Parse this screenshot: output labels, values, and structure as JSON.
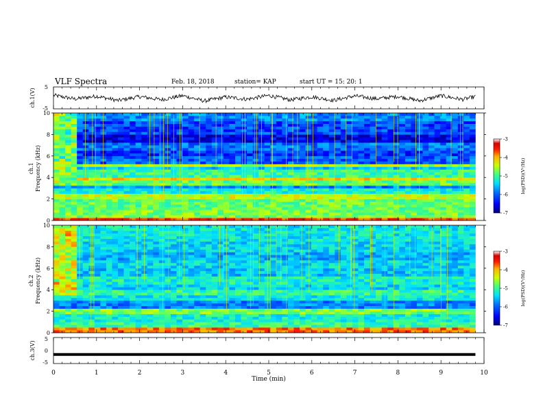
{
  "header": {
    "title": "VLF Spectra",
    "date": "Feb. 18, 2018",
    "station": "station= KAP",
    "start": "start  UT  =   15: 20: 1"
  },
  "colorbar": {
    "label": "log(PSD)(V²/Hz)",
    "ticks": [
      "-3",
      "-4",
      "-5",
      "-6",
      "-7"
    ],
    "range": [
      -7,
      -3
    ],
    "colors": [
      "#00007a",
      "#0000ff",
      "#0073ff",
      "#00e0ff",
      "#3fff80",
      "#c8ff00",
      "#ffb400",
      "#ff1a00",
      "#d80000",
      "#ffffff"
    ]
  },
  "chart_data": [
    {
      "type": "line",
      "panel": "ch1-waveform",
      "ylabel": "ch.1(V)",
      "ylim": [
        -5,
        5
      ],
      "ytick_labels": [
        "5",
        "-5"
      ],
      "xlim": [
        0,
        10
      ],
      "note": "noisy waveform fluctuating roughly between -3 and +3 V",
      "x": [
        0,
        0.5,
        1,
        1.5,
        2,
        2.5,
        3,
        3.5,
        4,
        4.5,
        5,
        5.5,
        6,
        6.5,
        7,
        7.5,
        8,
        8.5,
        9,
        9.5,
        9.8
      ],
      "y": [
        1.2,
        -0.5,
        0.8,
        -1.2,
        0.6,
        -0.8,
        1.0,
        -1.4,
        0.4,
        -0.6,
        1.1,
        -0.9,
        0.5,
        -1.1,
        0.9,
        -0.4,
        0.7,
        -1.3,
        1.0,
        -0.7,
        0.6
      ]
    },
    {
      "type": "heatmap",
      "panel": "ch1-spectrogram",
      "ylabel": "Frequency (kHz)",
      "channel_label": "ch.1",
      "ylim": [
        0,
        10
      ],
      "ytick_labels": [
        "0",
        "2",
        "4",
        "6",
        "8",
        "10"
      ],
      "xlim": [
        0,
        9.8
      ],
      "value_range": [
        -7,
        -3
      ],
      "bands": [
        {
          "f": [
            0,
            0.3
          ],
          "level": -3.6
        },
        {
          "f": [
            0.3,
            1.0
          ],
          "level": -4.8
        },
        {
          "f": [
            1.0,
            2.0
          ],
          "level": -4.9
        },
        {
          "f": [
            2.0,
            2.4
          ],
          "level": -4.5
        },
        {
          "f": [
            2.4,
            3.0
          ],
          "level": -5.3
        },
        {
          "f": [
            3.0,
            3.3
          ],
          "level": -5.9
        },
        {
          "f": [
            3.3,
            3.8
          ],
          "level": -4.9
        },
        {
          "f": [
            3.8,
            4.1
          ],
          "level": -4.2
        },
        {
          "f": [
            4.1,
            4.7
          ],
          "level": -5.1
        },
        {
          "f": [
            4.7,
            5.0
          ],
          "level": -5.6
        },
        {
          "f": [
            5.0,
            5.3
          ],
          "level": -4.6
        },
        {
          "f": [
            5.3,
            6.0
          ],
          "level": -6.1
        },
        {
          "f": [
            6.0,
            6.6
          ],
          "level": -6.3
        },
        {
          "f": [
            6.6,
            7.2
          ],
          "level": -6.0
        },
        {
          "f": [
            7.2,
            8.0
          ],
          "level": -6.6
        },
        {
          "f": [
            8.0,
            9.2
          ],
          "level": -6.2
        },
        {
          "f": [
            9.2,
            10.0
          ],
          "level": -5.9
        }
      ],
      "early_segment_end": 0.5,
      "early_segment_level": -4.8
    },
    {
      "type": "heatmap",
      "panel": "ch2-spectrogram",
      "ylabel": "Frequency (kHz)",
      "channel_label": "ch.2",
      "ylim": [
        0,
        10
      ],
      "ytick_labels": [
        "0",
        "2",
        "4",
        "6",
        "8",
        "10"
      ],
      "xlim": [
        0,
        9.8
      ],
      "value_range": [
        -7,
        -3
      ],
      "bands": [
        {
          "f": [
            0,
            0.4
          ],
          "level": -3.8
        },
        {
          "f": [
            0.4,
            1.0
          ],
          "level": -5.1
        },
        {
          "f": [
            1.0,
            1.8
          ],
          "level": -5.3
        },
        {
          "f": [
            1.8,
            2.2
          ],
          "level": -4.8
        },
        {
          "f": [
            2.2,
            3.0
          ],
          "level": -5.9
        },
        {
          "f": [
            3.0,
            3.4
          ],
          "level": -5.4
        },
        {
          "f": [
            3.4,
            4.0
          ],
          "level": -5.1
        },
        {
          "f": [
            4.0,
            4.6
          ],
          "level": -5.5
        },
        {
          "f": [
            4.6,
            5.2
          ],
          "level": -5.3
        },
        {
          "f": [
            5.2,
            6.0
          ],
          "level": -5.6
        },
        {
          "f": [
            6.0,
            6.8
          ],
          "level": -5.5
        },
        {
          "f": [
            6.8,
            7.6
          ],
          "level": -5.7
        },
        {
          "f": [
            7.6,
            8.6
          ],
          "level": -5.5
        },
        {
          "f": [
            8.6,
            10.0
          ],
          "level": -5.4
        }
      ],
      "early_segment_end": 0.5,
      "early_segment_level": -4.4
    },
    {
      "type": "line",
      "panel": "ch3-waveform",
      "ylabel": "ch.3(V)",
      "ylim": [
        -5,
        5
      ],
      "ytick_labels": [
        "5",
        "0",
        "-5"
      ],
      "xlim": [
        0,
        10
      ],
      "x": [
        0,
        9.8
      ],
      "y": [
        -1.5,
        -1.5
      ]
    }
  ],
  "xaxis": {
    "label": "Time (min)",
    "ticks": [
      "0",
      "1",
      "2",
      "3",
      "4",
      "5",
      "6",
      "7",
      "8",
      "9",
      "10"
    ],
    "range": [
      0,
      10
    ]
  }
}
